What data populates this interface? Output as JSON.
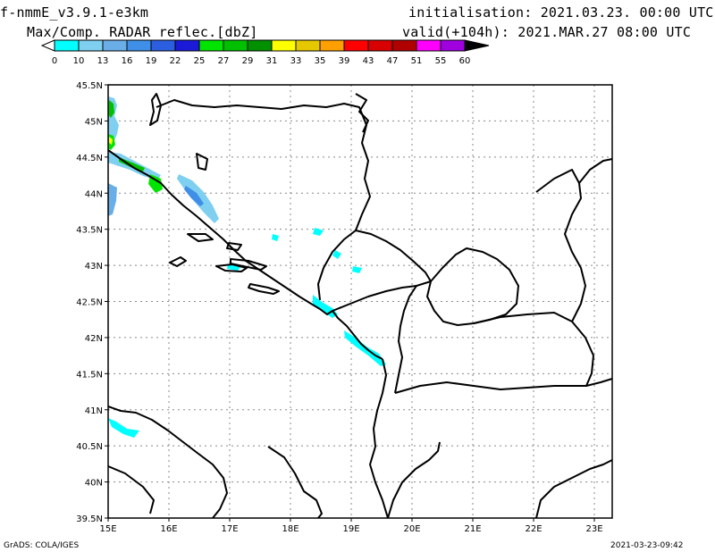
{
  "header": {
    "model": "f-nmmE_v3.9.1-e3km",
    "product": "Max/Comp. RADAR reflec.[dbZ]",
    "init": "initialisation: 2021.03.23. 00:00 UTC",
    "valid": "valid(+104h): 2021.MAR.27 08:00 UTC"
  },
  "colorbar": {
    "labels": [
      "0",
      "10",
      "13",
      "16",
      "19",
      "22",
      "25",
      "27",
      "29",
      "31",
      "33",
      "35",
      "39",
      "43",
      "47",
      "51",
      "55",
      "60"
    ],
    "colors": [
      "#00ffff",
      "#7fcff0",
      "#6aaee8",
      "#3f8fe8",
      "#2b5fe0",
      "#1a1ad8",
      "#00e400",
      "#00c000",
      "#009000",
      "#ffff00",
      "#e6c800",
      "#ffa000",
      "#ff0000",
      "#d80000",
      "#b00000",
      "#ff00ff",
      "#a000e0",
      "#000000"
    ]
  },
  "axes": {
    "lat_labels": [
      "45.5N",
      "45N",
      "44.5N",
      "44N",
      "43.5N",
      "43N",
      "42.5N",
      "42N",
      "41.5N",
      "41N",
      "40.5N",
      "40N",
      "39.5N"
    ],
    "lon_labels": [
      "15E",
      "16E",
      "17E",
      "18E",
      "19E",
      "20E",
      "21E",
      "22E",
      "23E"
    ]
  },
  "footer": {
    "left": "GrADS: COLA/IGES",
    "right": "2021-03-23-09:42"
  }
}
